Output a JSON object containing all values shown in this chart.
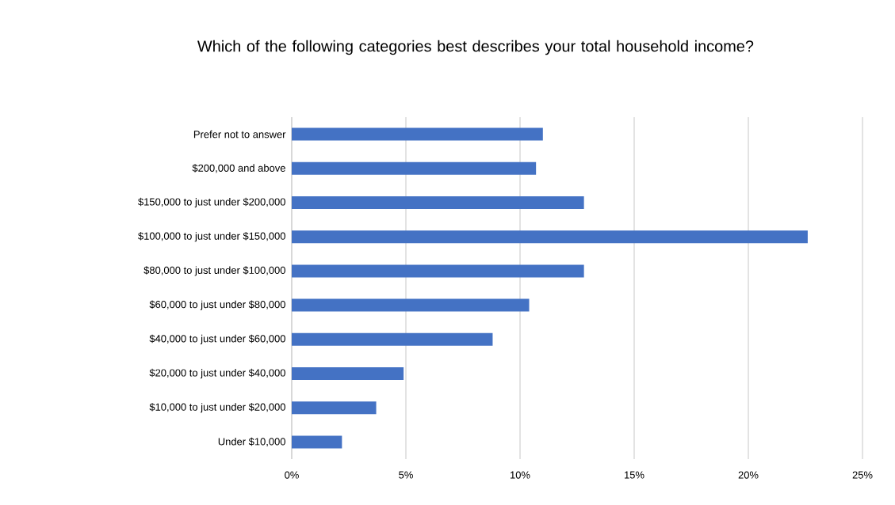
{
  "chart_data": {
    "type": "bar",
    "orientation": "horizontal",
    "title": "Which of the following categories best describes your total household income?",
    "categories": [
      "Prefer not to answer",
      "$200,000 and above",
      "$150,000 to just under $200,000",
      "$100,000 to just under $150,000",
      "$80,000 to just under $100,000",
      "$60,000 to just under $80,000",
      "$40,000 to just under $60,000",
      "$20,000 to just under $40,000",
      "$10,000 to just under $20,000",
      "Under $10,000"
    ],
    "values": [
      11.0,
      10.7,
      12.8,
      22.6,
      12.8,
      10.4,
      8.8,
      4.9,
      3.7,
      2.2
    ],
    "color": "#4472c4",
    "xlim": [
      0,
      25
    ],
    "xticks": [
      {
        "value": 0,
        "label": "0%"
      },
      {
        "value": 5,
        "label": "5%"
      },
      {
        "value": 10,
        "label": "10%"
      },
      {
        "value": 15,
        "label": "15%"
      },
      {
        "value": 20,
        "label": "20%"
      },
      {
        "value": 25,
        "label": "25%"
      }
    ],
    "grid": "x"
  }
}
